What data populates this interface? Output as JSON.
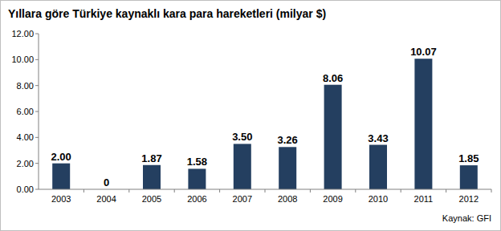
{
  "chart_data": {
    "type": "bar",
    "title": "Yıllara göre Türkiye kaynaklı kara para hareketleri (milyar $)",
    "source": "Kaynak: GFI",
    "categories": [
      "2003",
      "2004",
      "2005",
      "2006",
      "2007",
      "2008",
      "2009",
      "2010",
      "2011",
      "2012"
    ],
    "values": [
      2.0,
      0,
      1.87,
      1.58,
      3.5,
      3.26,
      8.06,
      3.43,
      10.07,
      1.85
    ],
    "value_labels": [
      "2.00",
      "0",
      "1.87",
      "1.58",
      "3.50",
      "3.26",
      "8.06",
      "3.43",
      "10.07",
      "1.85"
    ],
    "color": "#243f60",
    "ylim": [
      0,
      12
    ],
    "yticks": [
      {
        "value": 0,
        "label": "0.00"
      },
      {
        "value": 2,
        "label": "2.00"
      },
      {
        "value": 4,
        "label": "4.00"
      },
      {
        "value": 6,
        "label": "6.00"
      },
      {
        "value": 8,
        "label": "8.00"
      },
      {
        "value": 10,
        "label": "10.00"
      },
      {
        "value": 12,
        "label": "12.00"
      }
    ],
    "grid": false,
    "data_labels": true
  }
}
